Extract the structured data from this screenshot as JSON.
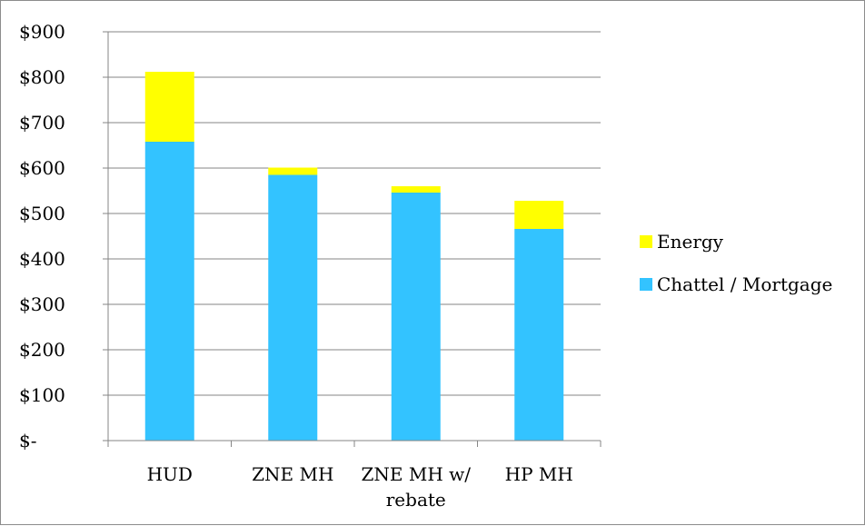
{
  "chart_data": {
    "type": "bar",
    "stacked": true,
    "categories": [
      "HUD",
      "ZNE MH",
      "ZNE MH w/ rebate",
      "HP MH"
    ],
    "category_lines": [
      [
        "HUD"
      ],
      [
        "ZNE MH"
      ],
      [
        "ZNE MH w/",
        "rebate"
      ],
      [
        "HP MH"
      ]
    ],
    "series": [
      {
        "name": "Chattel / Mortgage",
        "color": "#33C3FF",
        "values": [
          658,
          585,
          546,
          466
        ]
      },
      {
        "name": "Energy",
        "color": "#FFFF00",
        "values": [
          154,
          16,
          14,
          62
        ]
      }
    ],
    "ylim": [
      0,
      900
    ],
    "yticks": [
      0,
      100,
      200,
      300,
      400,
      500,
      600,
      700,
      800,
      900
    ],
    "ytick_labels": [
      "$-",
      "$100",
      "$200",
      "$300",
      "$400",
      "$500",
      "$600",
      "$700",
      "$800",
      "$900"
    ],
    "grid": true,
    "legend_position": "right",
    "legend_order": [
      "Energy",
      "Chattel / Mortgage"
    ]
  }
}
